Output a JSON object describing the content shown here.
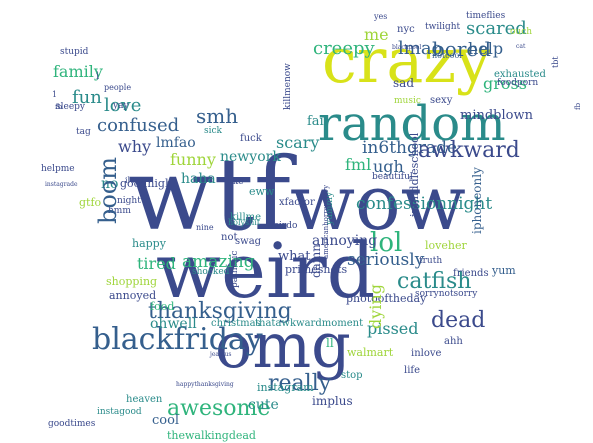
{
  "palette": {
    "indigo": "#3b4a8c",
    "blue": "#355f8d",
    "teal": "#2a8b8a",
    "green": "#2fb47c",
    "lime": "#9fd53a",
    "yellow": "#d8e219",
    "purple": "#46327e",
    "dark": "#440154"
  },
  "words": [
    {
      "t": "wtf",
      "c": "indigo"
    },
    {
      "t": "wow",
      "c": "indigo"
    },
    {
      "t": "weird",
      "c": "indigo"
    },
    {
      "t": "omg",
      "c": "indigo"
    },
    {
      "t": "crazy",
      "c": "yellow"
    },
    {
      "t": "random",
      "c": "teal"
    },
    {
      "t": "blackfriday",
      "c": "blue"
    },
    {
      "t": "boom",
      "c": "blue"
    },
    {
      "t": "thanksgiving",
      "c": "blue"
    },
    {
      "t": "awesome",
      "c": "green"
    },
    {
      "t": "really",
      "c": "blue"
    },
    {
      "t": "lol",
      "c": "green"
    },
    {
      "t": "in6thgrade",
      "c": "blue"
    },
    {
      "t": "confessionnight",
      "c": "teal"
    },
    {
      "t": "catfish",
      "c": "teal"
    },
    {
      "t": "seriously",
      "c": "blue"
    },
    {
      "t": "dead",
      "c": "indigo"
    },
    {
      "t": "awkward",
      "c": "indigo"
    },
    {
      "t": "bored",
      "c": "blue"
    },
    {
      "t": "scared",
      "c": "teal"
    },
    {
      "t": "creepy",
      "c": "green"
    },
    {
      "t": "lmao",
      "c": "blue"
    },
    {
      "t": "me",
      "c": "lime"
    },
    {
      "t": "help",
      "c": "blue"
    },
    {
      "t": "fml",
      "c": "green"
    },
    {
      "t": "ugh",
      "c": "blue"
    },
    {
      "t": "love",
      "c": "teal"
    },
    {
      "t": "fun",
      "c": "teal"
    },
    {
      "t": "family",
      "c": "green"
    },
    {
      "t": "confused",
      "c": "blue"
    },
    {
      "t": "why",
      "c": "indigo"
    },
    {
      "t": "lmfao",
      "c": "blue"
    },
    {
      "t": "smh",
      "c": "blue"
    },
    {
      "t": "funny",
      "c": "lime"
    },
    {
      "t": "newyork",
      "c": "teal"
    },
    {
      "t": "scary",
      "c": "teal"
    },
    {
      "t": "haha",
      "c": "teal"
    },
    {
      "t": "amazing",
      "c": "green"
    },
    {
      "t": "tired",
      "c": "green"
    },
    {
      "t": "happy",
      "c": "teal"
    },
    {
      "t": "ohwell",
      "c": "teal"
    },
    {
      "t": "cute",
      "c": "teal"
    },
    {
      "t": "cool",
      "c": "blue"
    },
    {
      "t": "annoying",
      "c": "indigo"
    },
    {
      "t": "what",
      "c": "indigo"
    },
    {
      "t": "pissed",
      "c": "teal"
    },
    {
      "t": "gross",
      "c": "green"
    },
    {
      "t": "mindblown",
      "c": "indigo"
    },
    {
      "t": "exhausted",
      "c": "teal"
    },
    {
      "t": "sad",
      "c": "indigo"
    },
    {
      "t": "nyc",
      "c": "indigo"
    },
    {
      "t": "twilight",
      "c": "indigo"
    },
    {
      "t": "timeflies",
      "c": "indigo"
    },
    {
      "t": "notcool",
      "c": "blue"
    },
    {
      "t": "no",
      "c": "teal"
    },
    {
      "t": "gtfo",
      "c": "lime"
    },
    {
      "t": "goodnight",
      "c": "indigo"
    },
    {
      "t": "night",
      "c": "indigo"
    },
    {
      "t": "swag",
      "c": "indigo"
    },
    {
      "t": "shopping",
      "c": "lime"
    },
    {
      "t": "annoyed",
      "c": "indigo"
    },
    {
      "t": "food",
      "c": "green"
    },
    {
      "t": "instagram",
      "c": "teal"
    },
    {
      "t": "instagood",
      "c": "teal"
    },
    {
      "t": "heaven",
      "c": "teal"
    },
    {
      "t": "goodtimes",
      "c": "indigo"
    },
    {
      "t": "thewalkingdead",
      "c": "green"
    },
    {
      "t": "implus",
      "c": "indigo"
    },
    {
      "t": "inlove",
      "c": "indigo"
    },
    {
      "t": "ahh",
      "c": "indigo"
    },
    {
      "t": "loveher",
      "c": "lime"
    },
    {
      "t": "friends",
      "c": "indigo"
    },
    {
      "t": "truth",
      "c": "indigo"
    },
    {
      "t": "yum",
      "c": "blue"
    },
    {
      "t": "foodporn",
      "c": "indigo"
    },
    {
      "t": "sexy",
      "c": "indigo"
    },
    {
      "t": "music",
      "c": "lime"
    },
    {
      "t": "beautiful",
      "c": "indigo"
    },
    {
      "t": "primeshots",
      "c": "indigo"
    },
    {
      "t": "sorrynotsorry",
      "c": "indigo"
    },
    {
      "t": "photooftheday",
      "c": "indigo"
    },
    {
      "t": "christmas",
      "c": "teal"
    },
    {
      "t": "thatawkwardmoment",
      "c": "teal"
    },
    {
      "t": "walmart",
      "c": "lime"
    },
    {
      "t": "life",
      "c": "indigo"
    },
    {
      "t": "stop",
      "c": "teal"
    },
    {
      "t": "eww",
      "c": "teal"
    },
    {
      "t": "xfactor",
      "c": "indigo"
    },
    {
      "t": "killme",
      "c": "teal"
    },
    {
      "t": "holyshit",
      "c": "teal"
    },
    {
      "t": "shocked",
      "c": "teal"
    },
    {
      "t": "weirdo",
      "c": "indigo"
    },
    {
      "t": "not",
      "c": "indigo"
    },
    {
      "t": "sick",
      "c": "teal"
    },
    {
      "t": "fuck",
      "c": "indigo"
    },
    {
      "t": "like",
      "c": "indigo"
    },
    {
      "t": "yay",
      "c": "indigo"
    },
    {
      "t": "people",
      "c": "indigo"
    },
    {
      "t": "sleepy",
      "c": "indigo"
    },
    {
      "t": "tag",
      "c": "indigo"
    },
    {
      "t": "stupid",
      "c": "indigo"
    },
    {
      "t": "i",
      "c": "indigo"
    },
    {
      "t": "ouch",
      "c": "lime"
    },
    {
      "t": "fail",
      "c": "teal"
    },
    {
      "t": "yes",
      "c": "indigo"
    },
    {
      "t": "hmm",
      "c": "indigo"
    },
    {
      "t": "helpme",
      "c": "indigo"
    },
    {
      "t": "ilovit",
      "c": "indigo"
    },
    {
      "t": "nine",
      "c": "indigo"
    },
    {
      "t": "fb",
      "c": "indigo"
    },
    {
      "t": "1",
      "c": "indigo"
    },
    {
      "t": "ll",
      "c": "green"
    },
    {
      "t": "jealous",
      "c": "indigo"
    },
    {
      "t": "cat",
      "c": "indigo"
    },
    {
      "t": "blackpool",
      "c": "indigo"
    },
    {
      "t": "instagrade",
      "c": "indigo"
    },
    {
      "t": "happythanksgiving",
      "c": "indigo"
    }
  ],
  "rotated_words": [
    {
      "t": "boom",
      "c": "blue"
    },
    {
      "t": "dying",
      "c": "lime"
    },
    {
      "t": "iphoneonly",
      "c": "blue"
    },
    {
      "t": "killmenow",
      "c": "indigo"
    },
    {
      "t": "inmiddleschool",
      "c": "indigo"
    },
    {
      "t": "damn",
      "c": "indigo"
    },
    {
      "t": "yummy",
      "c": "teal"
    },
    {
      "t": "pathetic",
      "c": "indigo"
    },
    {
      "t": "americanhorrorstory",
      "c": "indigo"
    },
    {
      "t": "tbt",
      "c": "indigo"
    },
    {
      "t": "fb",
      "c": "indigo"
    }
  ]
}
